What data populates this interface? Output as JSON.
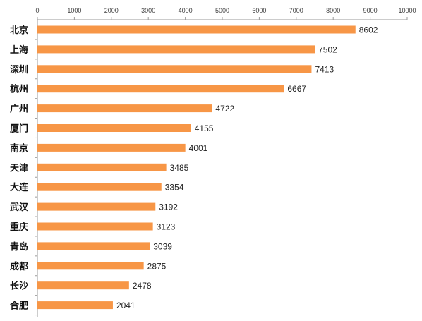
{
  "chart_data": {
    "type": "bar",
    "orientation": "horizontal",
    "categories": [
      "北京",
      "上海",
      "深圳",
      "杭州",
      "广州",
      "厦门",
      "南京",
      "天津",
      "大连",
      "武汉",
      "重庆",
      "青岛",
      "成都",
      "长沙",
      "合肥"
    ],
    "values": [
      8602,
      7502,
      7413,
      6667,
      4722,
      4155,
      4001,
      3485,
      3354,
      3192,
      3123,
      3039,
      2875,
      2478,
      2041
    ],
    "xlim": [
      0,
      10000
    ],
    "x_ticks": [
      "0",
      "1000",
      "2000",
      "3000",
      "4000",
      "5000",
      "6000",
      "7000",
      "8000",
      "9000",
      "10000"
    ],
    "axis_position": "top",
    "grid": false,
    "legend": "none",
    "data_labels": true
  },
  "colors": {
    "bar": "#F79646",
    "axis": "#9a9a9a",
    "text": "#222222"
  }
}
